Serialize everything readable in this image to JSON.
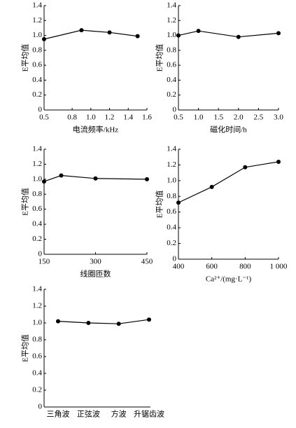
{
  "chart_data": [
    {
      "type": "line",
      "x_label": "电流频率/kHz",
      "y_label": "E平均值",
      "x": [
        0.5,
        0.9,
        1.2,
        1.5
      ],
      "values": [
        0.95,
        1.07,
        1.04,
        0.99
      ],
      "xlim": [
        0.5,
        1.6
      ],
      "xticks": [
        0.5,
        0.8,
        {
          "value": 1,
          "label": "1.0"
        },
        1.2,
        1.4,
        1.6
      ],
      "ylim": [
        0,
        1.4
      ],
      "yticks": [
        0,
        0.2,
        0.4,
        0.6,
        0.8,
        {
          "value": 1,
          "label": "1.0"
        },
        1.2,
        1.4
      ],
      "color": "#000000"
    },
    {
      "type": "line",
      "x_label": "磁化时间/h",
      "y_label": "E平均值",
      "x": [
        0.5,
        1,
        2,
        3
      ],
      "values": [
        1.0,
        1.06,
        0.98,
        1.03
      ],
      "xlim": [
        0.5,
        3
      ],
      "xticks": [
        0.5,
        {
          "value": 1,
          "label": "1.0"
        },
        1.5,
        {
          "value": 2,
          "label": "2.0"
        },
        2.5,
        {
          "value": 3,
          "label": "3.0"
        }
      ],
      "ylim": [
        0,
        1.4
      ],
      "yticks": [
        0,
        0.2,
        0.4,
        0.6,
        0.8,
        {
          "value": 1,
          "label": "1.0"
        },
        1.2,
        1.4
      ],
      "color": "#000000"
    },
    {
      "type": "line",
      "x_label": "线圈匝数",
      "y_label": "E平均值",
      "x": [
        150,
        200,
        300,
        450
      ],
      "values": [
        0.97,
        1.05,
        1.01,
        1.0
      ],
      "xlim": [
        150,
        450
      ],
      "xticks": [
        150,
        300,
        450
      ],
      "ylim": [
        0,
        1.4
      ],
      "yticks": [
        0,
        0.2,
        0.4,
        0.6,
        0.8,
        {
          "value": 1,
          "label": "1.0"
        },
        1.2,
        1.4
      ],
      "color": "#000000"
    },
    {
      "type": "line",
      "x_label": "Ca²⁺/(mg·L⁻¹)",
      "y_label": "E平均值",
      "x": [
        400,
        600,
        800,
        1000
      ],
      "values": [
        0.72,
        0.92,
        1.17,
        1.24
      ],
      "xlim": [
        400,
        1000
      ],
      "xticks": [
        400,
        600,
        800,
        {
          "value": 1000,
          "label": "1 000"
        }
      ],
      "ylim": [
        0,
        1.4
      ],
      "yticks": [
        0,
        0.2,
        0.4,
        0.6,
        0.8,
        {
          "value": 1,
          "label": "1.0"
        },
        1.2,
        1.4
      ],
      "color": "#000000"
    },
    {
      "type": "line",
      "y_label": "E平均值",
      "categories": [
        "三角波",
        "正弦波",
        "方波",
        "升锯齿波"
      ],
      "values": [
        1.02,
        1.0,
        0.99,
        1.04
      ],
      "ylim": [
        0,
        1.4
      ],
      "yticks": [
        0,
        0.2,
        0.4,
        0.6,
        0.8,
        {
          "value": 1,
          "label": "1.0"
        },
        1.2,
        1.4
      ],
      "color": "#000000"
    }
  ]
}
